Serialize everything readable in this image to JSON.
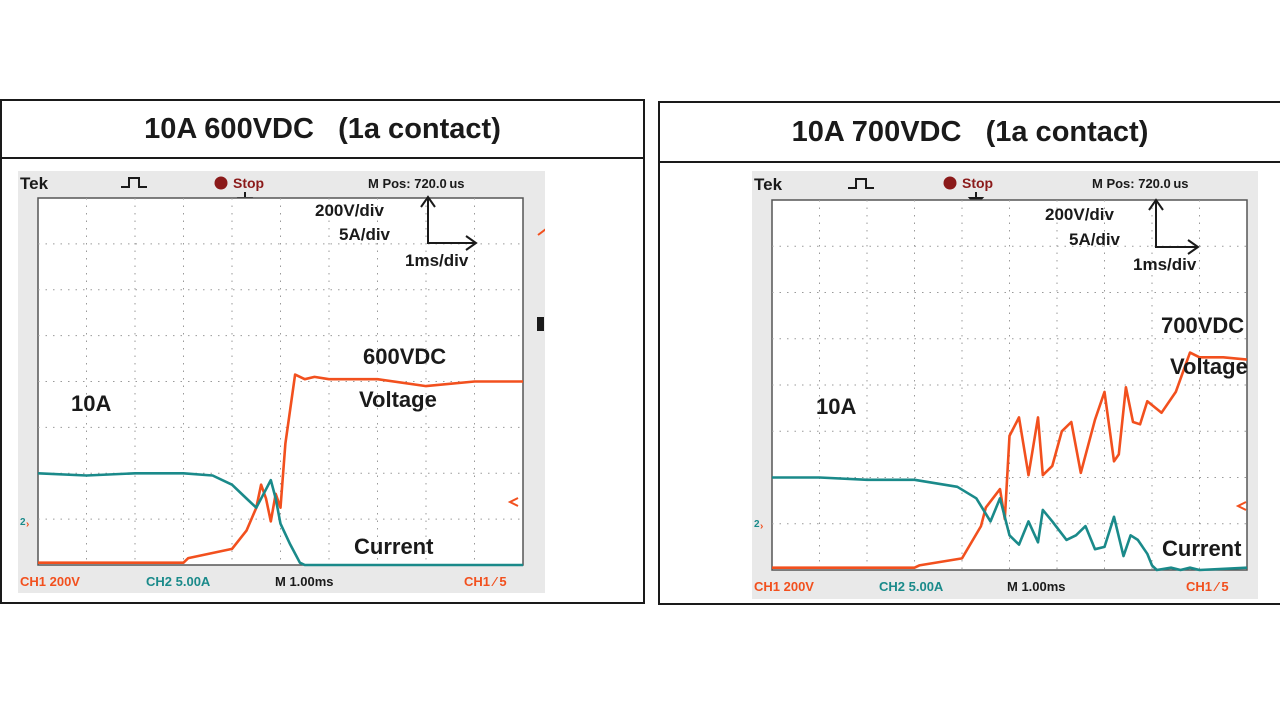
{
  "colors": {
    "ch1": "#f2501e",
    "ch2": "#1a8a8a",
    "grid": "#9a9a9a",
    "text": "#1a1a1a",
    "stop": "#8b1a1a"
  },
  "chart_data": [
    {
      "type": "line",
      "title": "10A 600VDC   (1a contact)",
      "scope_header": {
        "brand": "Tek",
        "state": "Stop",
        "mpos": "M Pos: 720.0 us"
      },
      "scale_note": {
        "volt": "200V/div",
        "amp": "5A/div",
        "time": "1ms/div"
      },
      "annotations": {
        "voltage_value": "600VDC",
        "voltage_label": "Voltage",
        "current_value": "10A",
        "current_label": "Current"
      },
      "footer": {
        "ch1": "CH1  200V",
        "ch2": "CH2  5.00A",
        "time": "M 1.00ms",
        "trig": "CH1 ∕ 5"
      },
      "x_divisions": 10,
      "y_divisions": 8,
      "xlim": [
        0,
        10
      ],
      "ylim": [
        0,
        8
      ],
      "series": [
        {
          "channel": "CH1",
          "color": "#f2501e",
          "x": [
            0,
            1,
            2,
            3,
            3.1,
            4.0,
            4.3,
            4.5,
            4.6,
            4.7,
            4.8,
            4.9,
            5.0,
            5.1,
            5.3,
            5.5,
            5.7,
            6,
            7,
            8,
            9,
            10
          ],
          "y": [
            0.05,
            0.05,
            0.05,
            0.05,
            0.15,
            0.35,
            0.75,
            1.25,
            1.75,
            1.45,
            0.95,
            1.55,
            1.25,
            2.65,
            4.15,
            4.05,
            4.1,
            4.05,
            4.05,
            3.9,
            4.0,
            4.0
          ]
        },
        {
          "channel": "CH2",
          "color": "#1a8a8a",
          "x": [
            0,
            1,
            2,
            3,
            3.6,
            4.0,
            4.3,
            4.5,
            4.7,
            4.8,
            4.9,
            5.0,
            5.2,
            5.4,
            5.5,
            6,
            7,
            8,
            9,
            10
          ],
          "y": [
            2.0,
            1.95,
            2.0,
            2.0,
            1.95,
            1.75,
            1.45,
            1.25,
            1.65,
            1.85,
            1.45,
            0.9,
            0.45,
            0.05,
            0.0,
            0.0,
            0.0,
            0.0,
            0.0,
            0.0
          ]
        }
      ]
    },
    {
      "type": "line",
      "title": "10A 700VDC   (1a contact)",
      "scope_header": {
        "brand": "Tek",
        "state": "Stop",
        "mpos": "M Pos: 720.0 us"
      },
      "scale_note": {
        "volt": "200V/div",
        "amp": "5A/div",
        "time": "1ms/div"
      },
      "annotations": {
        "voltage_value": "700VDC",
        "voltage_label": "Voltage",
        "current_value": "10A",
        "current_label": "Current"
      },
      "footer": {
        "ch1": "CH1  200V",
        "ch2": "CH2  5.00A",
        "time": "M 1.00ms",
        "trig": "CH1 ∕ 5"
      },
      "x_divisions": 10,
      "y_divisions": 8,
      "xlim": [
        0,
        10
      ],
      "ylim": [
        0,
        8
      ],
      "series": [
        {
          "channel": "CH1",
          "color": "#f2501e",
          "x": [
            0,
            1,
            2,
            3,
            3.1,
            4.0,
            4.4,
            4.5,
            4.8,
            4.9,
            5.0,
            5.2,
            5.4,
            5.6,
            5.7,
            5.9,
            6.1,
            6.3,
            6.5,
            6.8,
            7.0,
            7.2,
            7.3,
            7.45,
            7.6,
            7.75,
            7.9,
            8.2,
            8.5,
            8.8,
            9.0,
            9.5,
            10
          ],
          "y": [
            0.05,
            0.05,
            0.05,
            0.05,
            0.1,
            0.25,
            0.95,
            1.35,
            1.75,
            1.1,
            2.9,
            3.3,
            2.05,
            3.3,
            2.05,
            2.25,
            3.0,
            3.2,
            2.1,
            3.25,
            3.85,
            2.35,
            2.5,
            3.95,
            3.2,
            3.15,
            3.65,
            3.4,
            3.85,
            4.7,
            4.6,
            4.6,
            4.55
          ]
        },
        {
          "channel": "CH2",
          "color": "#1a8a8a",
          "x": [
            0,
            1,
            2,
            3,
            3.9,
            4.3,
            4.6,
            4.8,
            5.0,
            5.2,
            5.4,
            5.6,
            5.7,
            5.9,
            6.2,
            6.4,
            6.6,
            6.8,
            7.0,
            7.2,
            7.4,
            7.55,
            7.7,
            7.9,
            8.0,
            8.1,
            8.4,
            8.6,
            8.8,
            9.0,
            10
          ],
          "y": [
            2.0,
            2.0,
            1.95,
            1.95,
            1.8,
            1.55,
            1.05,
            1.55,
            0.75,
            0.55,
            1.05,
            0.6,
            1.3,
            1.05,
            0.65,
            0.75,
            0.95,
            0.45,
            0.5,
            1.15,
            0.3,
            0.75,
            0.65,
            0.35,
            0.1,
            0.0,
            0.05,
            0.0,
            0.05,
            0.0,
            0.05
          ]
        }
      ]
    }
  ]
}
